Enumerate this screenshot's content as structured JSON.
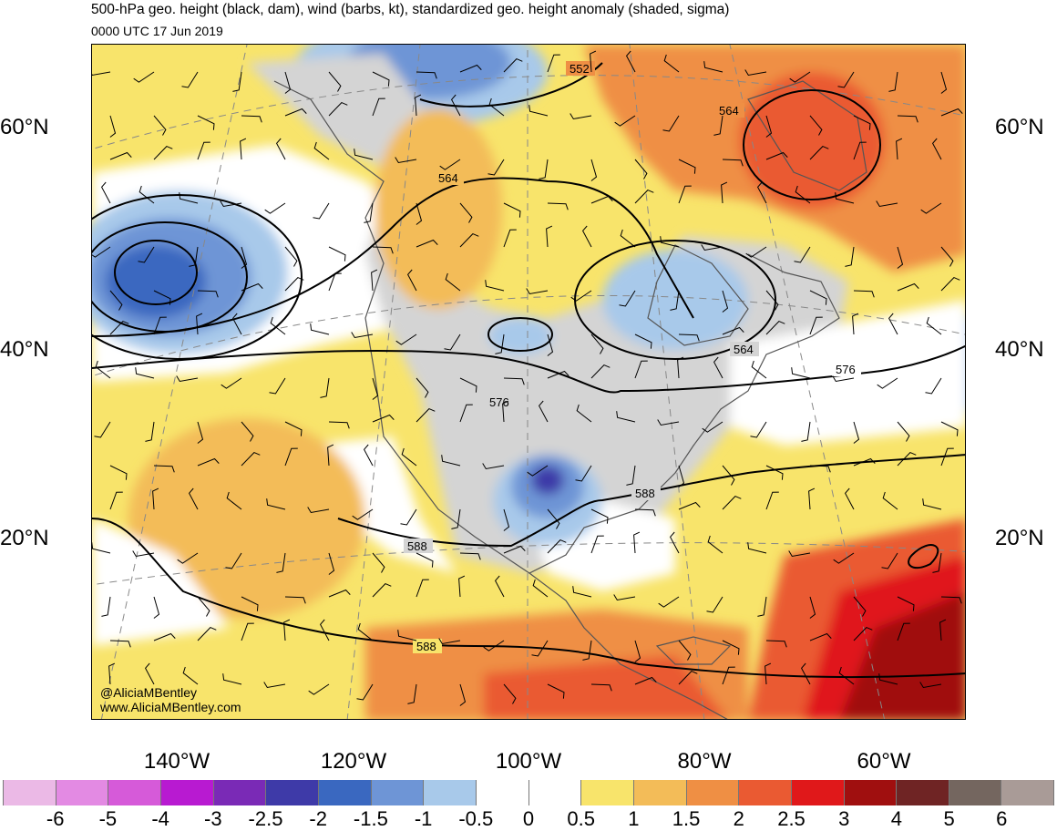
{
  "title": {
    "line1": "500-hPa geo. height (black, dam), wind (barbs, kt), standardized geo. height anomaly (shaded, sigma)",
    "line2": "0000 UTC 17 Jun 2019"
  },
  "credits": {
    "handle": "@AliciaMBentley",
    "website": "www.AliciaMBentley.com"
  },
  "latitude_labels": [
    "60°N",
    "40°N",
    "20°N"
  ],
  "longitude_labels": [
    "140°W",
    "120°W",
    "100°W",
    "80°W",
    "60°W"
  ],
  "contour_labels": [
    "552",
    "564",
    "564",
    "564",
    "576",
    "576",
    "588",
    "588",
    "588"
  ],
  "colorbar": {
    "colors": [
      "#ebb9e6",
      "#e38ae3",
      "#d65ad9",
      "#b81ad1",
      "#7a2ab6",
      "#3e3aa8",
      "#3a68c0",
      "#6e95d6",
      "#a8c9ea",
      "#ffffff",
      "#ffffff",
      "#f8e46b",
      "#f3bc58",
      "#ef8f44",
      "#ea5a32",
      "#e0181a",
      "#a00f0f",
      "#6f2424",
      "#74665f",
      "#a99b97"
    ],
    "tick_labels": [
      "-6",
      "-5",
      "-4",
      "-3",
      "-2.5",
      "-2",
      "-1.5",
      "-1",
      "-0.5",
      "0",
      "0.5",
      "1",
      "1.5",
      "2",
      "2.5",
      "3",
      "4",
      "5",
      "6"
    ]
  },
  "colors": {
    "contour": "#000000",
    "land_outline": "#555555",
    "grid": "#888888"
  }
}
